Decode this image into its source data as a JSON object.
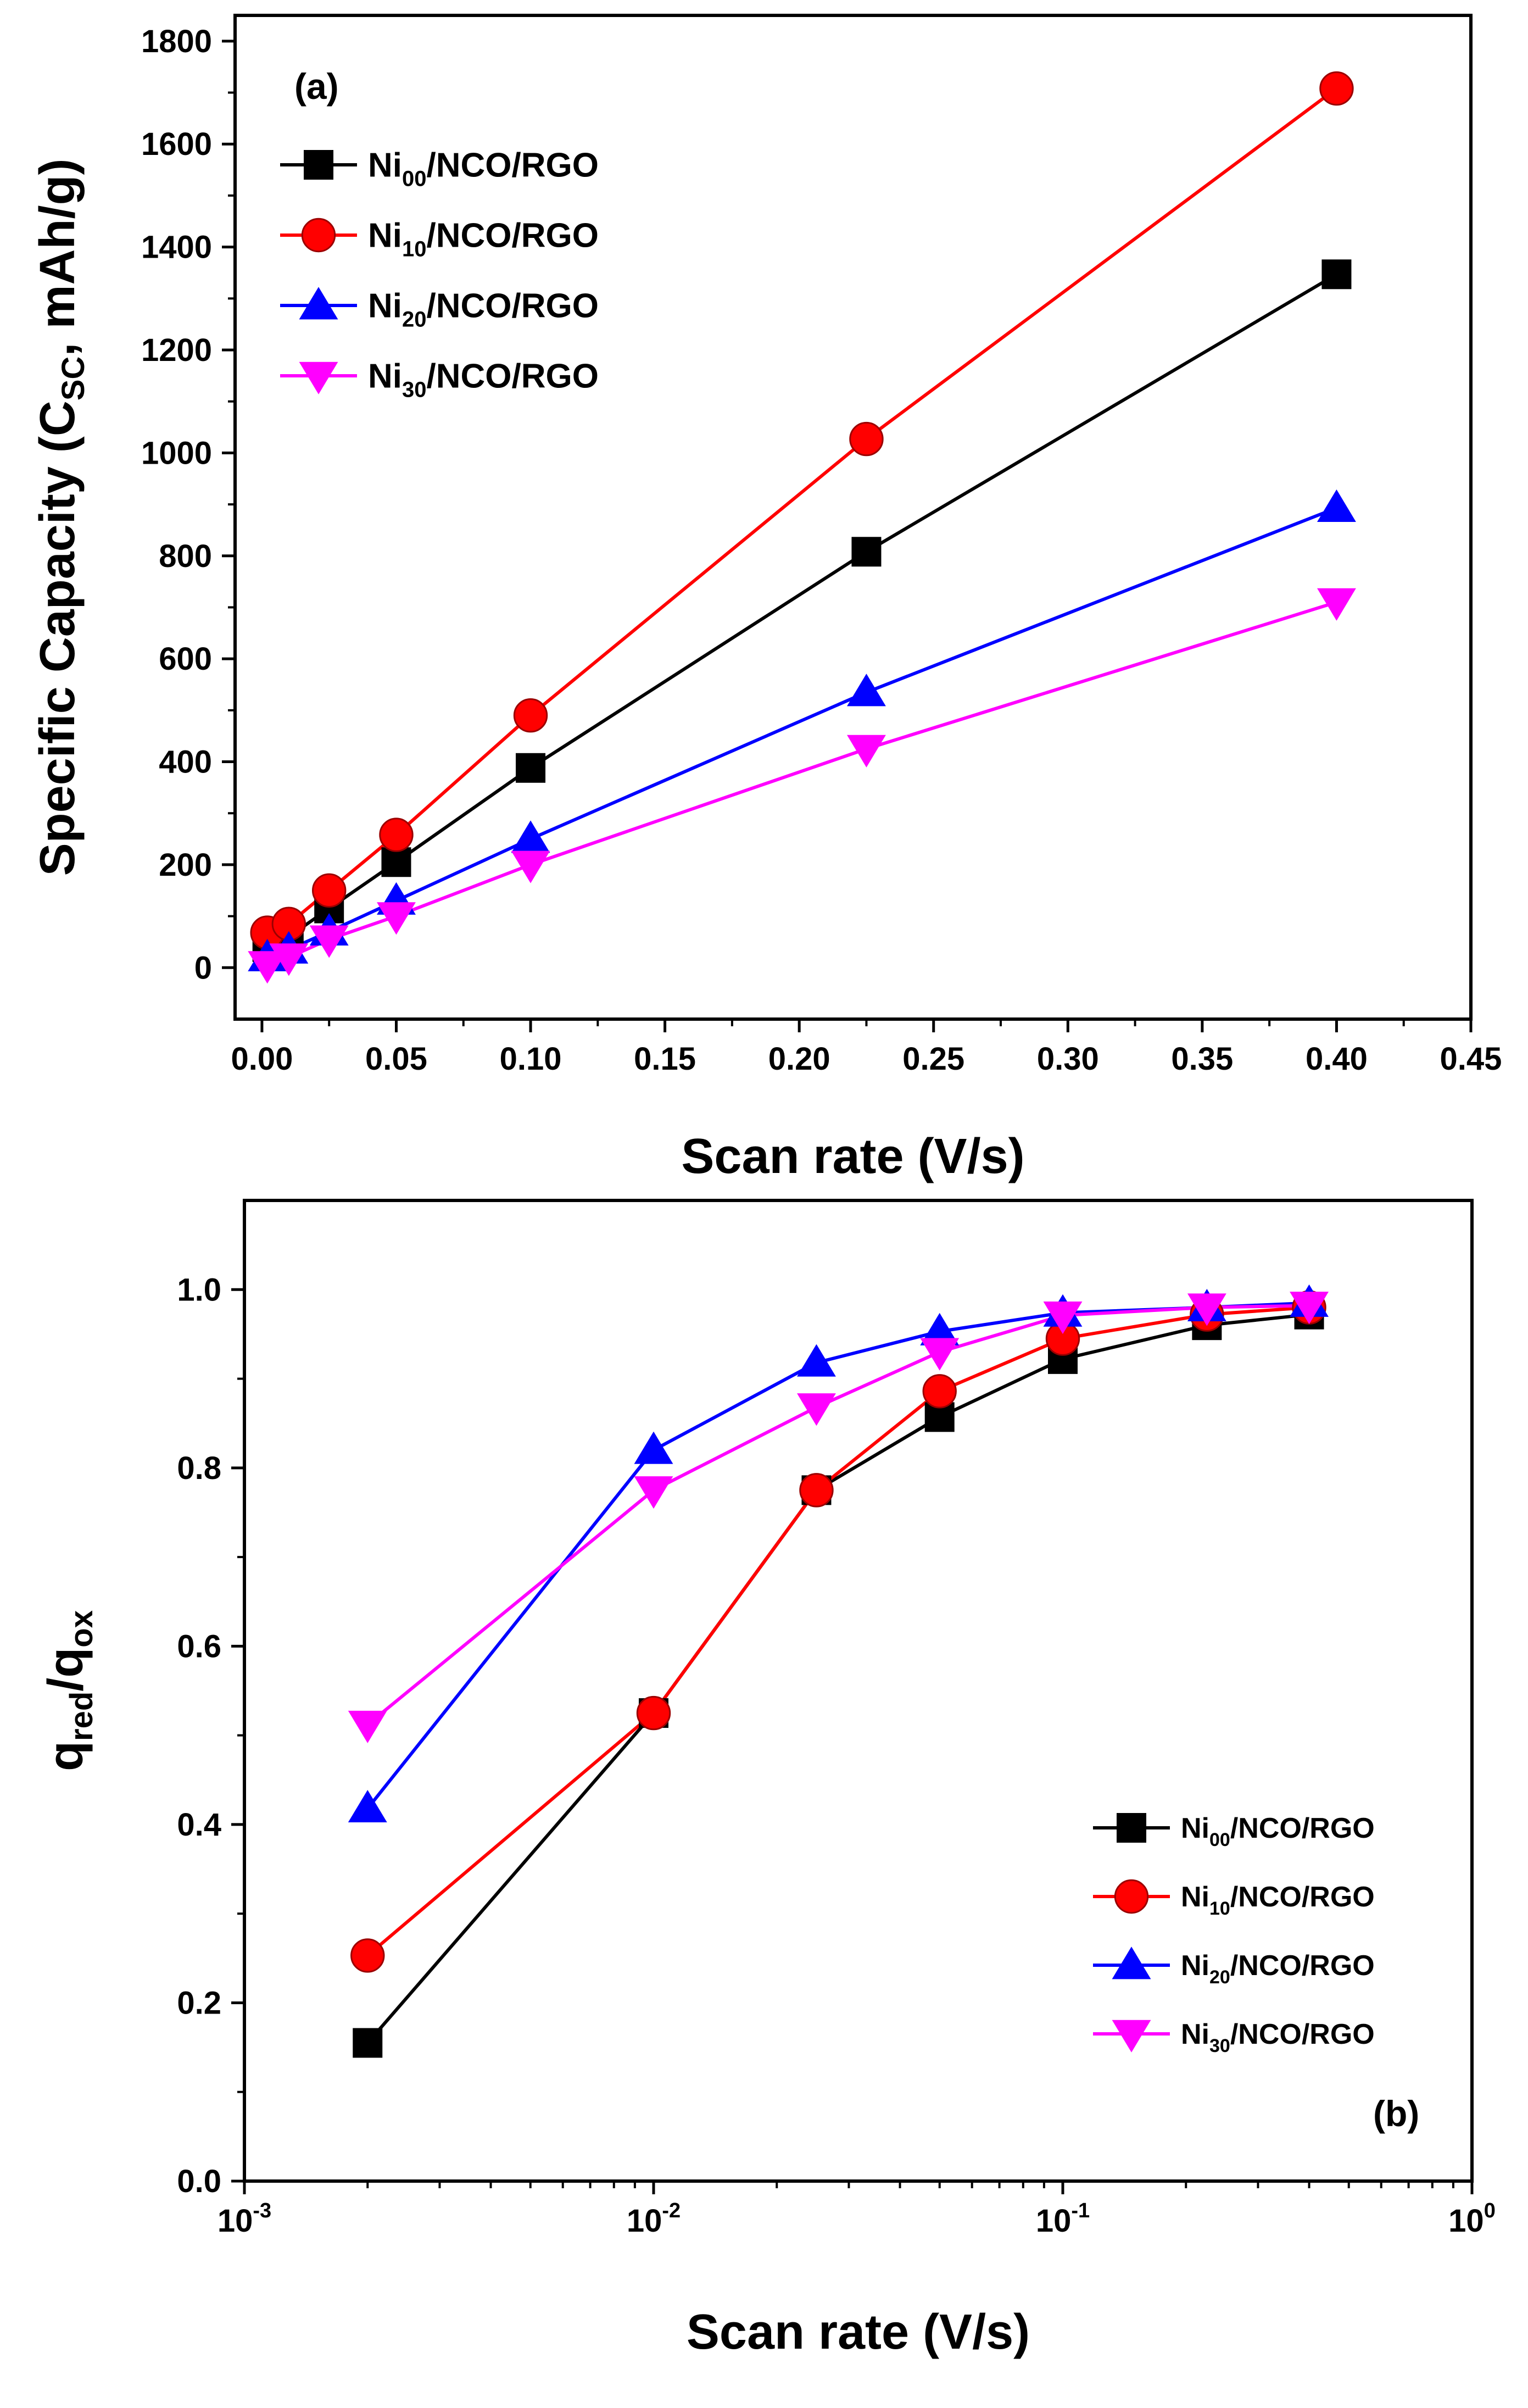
{
  "chart_data": [
    {
      "type": "line",
      "panel_label": "(a)",
      "title": "",
      "xlabel": "Scan rate (V/s)",
      "ylabel": "Specific Capacity (C_SC, mAh/g)",
      "ylabel_parts": {
        "pre": "Specific Capacity (C",
        "sub": "SC",
        "post": ", mAh/g)"
      },
      "xscale": "linear",
      "xlim": [
        -0.01,
        0.45
      ],
      "ylim": [
        -100,
        1850
      ],
      "xticks": [
        0.0,
        0.05,
        0.1,
        0.15,
        0.2,
        0.25,
        0.3,
        0.35,
        0.4,
        0.45
      ],
      "xtick_labels": [
        "0.00",
        "0.05",
        "0.10",
        "0.15",
        "0.20",
        "0.25",
        "0.30",
        "0.35",
        "0.40",
        "0.45"
      ],
      "yticks": [
        0,
        200,
        400,
        600,
        800,
        1000,
        1200,
        1400,
        1600,
        1800
      ],
      "ytick_labels": [
        "0",
        "200",
        "400",
        "600",
        "800",
        "1000",
        "1200",
        "1400",
        "1600",
        "1800"
      ],
      "legend_position": "top-left",
      "x": [
        0.002,
        0.01,
        0.025,
        0.05,
        0.1,
        0.225,
        0.4
      ],
      "series": [
        {
          "name": "Ni00/NCO/RGO",
          "label_pre": "Ni",
          "label_sub": "00",
          "label_post": "/NCO/RGO",
          "color": "#000000",
          "marker": "square",
          "values": [
            40,
            60,
            115,
            205,
            388,
            808,
            1347
          ]
        },
        {
          "name": "Ni10/NCO/RGO",
          "label_pre": "Ni",
          "label_sub": "10",
          "label_post": "/NCO/RGO",
          "color": "#ff0000",
          "marker": "circle",
          "values": [
            68,
            85,
            150,
            258,
            490,
            1027,
            1708
          ]
        },
        {
          "name": "Ni20/NCO/RGO",
          "label_pre": "Ni",
          "label_sub": "20",
          "label_post": "/NCO/RGO",
          "color": "#0000ff",
          "marker": "triangle-up",
          "values": [
            20,
            35,
            70,
            130,
            250,
            535,
            893
          ]
        },
        {
          "name": "Ni30/NCO/RGO",
          "label_pre": "Ni",
          "label_sub": "30",
          "label_post": "/NCO/RGO",
          "color": "#ff00ff",
          "marker": "triangle-down",
          "values": [
            5,
            20,
            55,
            100,
            200,
            425,
            710
          ]
        }
      ]
    },
    {
      "type": "line",
      "panel_label": "(b)",
      "title": "",
      "xlabel": "Scan rate (V/s)",
      "ylabel": "q_red/q_ox",
      "ylabel_parts": {
        "q1": "q",
        "sub1": "red",
        "mid": "/q",
        "sub2": "ox"
      },
      "xscale": "log",
      "xlim": [
        0.001,
        1
      ],
      "ylim": [
        0.0,
        1.1
      ],
      "xticks": [
        0.001,
        0.01,
        0.1,
        1
      ],
      "xtick_labels": [
        {
          "base": "10",
          "exp": "-3"
        },
        {
          "base": "10",
          "exp": "-2"
        },
        {
          "base": "10",
          "exp": "-1"
        },
        {
          "base": "10",
          "exp": "0"
        }
      ],
      "yticks": [
        0.0,
        0.2,
        0.4,
        0.6,
        0.8,
        1.0
      ],
      "ytick_labels": [
        "0.0",
        "0.2",
        "0.4",
        "0.6",
        "0.8",
        "1.0"
      ],
      "legend_position": "bottom-right",
      "x": [
        0.002,
        0.01,
        0.025,
        0.05,
        0.1,
        0.225,
        0.4
      ],
      "series": [
        {
          "name": "Ni00/NCO/RGO",
          "label_pre": "Ni",
          "label_sub": "00",
          "label_post": "/NCO/RGO",
          "color": "#000000",
          "marker": "square",
          "values": [
            0.155,
            0.525,
            0.775,
            0.857,
            0.922,
            0.96,
            0.972
          ]
        },
        {
          "name": "Ni10/NCO/RGO",
          "label_pre": "Ni",
          "label_sub": "10",
          "label_post": "/NCO/RGO",
          "color": "#ff0000",
          "marker": "circle",
          "values": [
            0.253,
            0.525,
            0.775,
            0.886,
            0.945,
            0.972,
            0.98
          ]
        },
        {
          "name": "Ni20/NCO/RGO",
          "label_pre": "Ni",
          "label_sub": "20",
          "label_post": "/NCO/RGO",
          "color": "#0000ff",
          "marker": "triangle-up",
          "values": [
            0.418,
            0.82,
            0.918,
            0.953,
            0.974,
            0.98,
            0.985
          ]
        },
        {
          "name": "Ni30/NCO/RGO",
          "label_pre": "Ni",
          "label_sub": "30",
          "label_post": "/NCO/RGO",
          "color": "#ff00ff",
          "marker": "triangle-down",
          "values": [
            0.512,
            0.775,
            0.868,
            0.93,
            0.971,
            0.98,
            0.982
          ]
        }
      ]
    }
  ]
}
